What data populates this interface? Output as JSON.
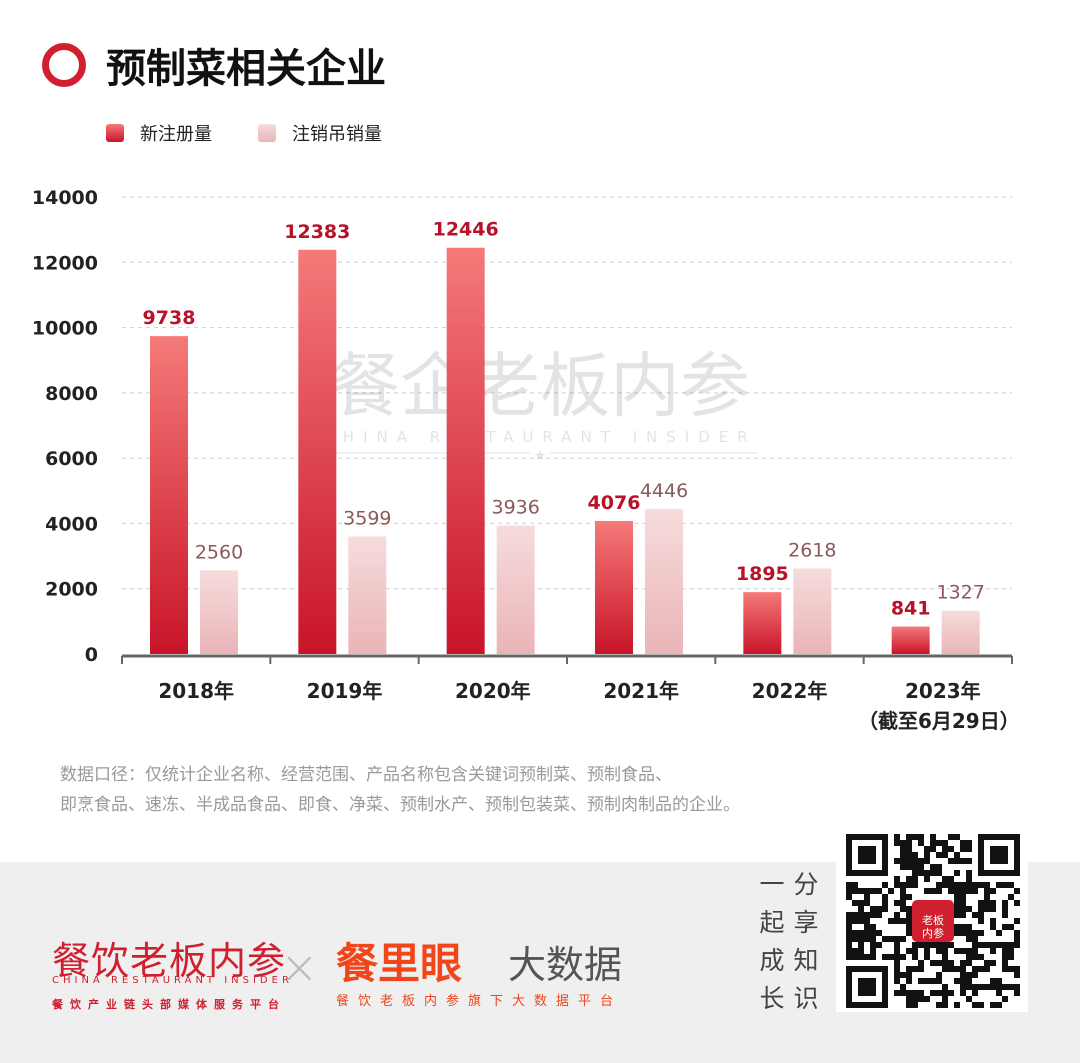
{
  "header": {
    "title": "预制菜相关企业"
  },
  "colors": {
    "accent": "#d01f2e",
    "new_top": "#f47a78",
    "new_bottom": "#c8142a",
    "cancel_top": "#f6dcdc",
    "cancel_bottom": "#eab4b7",
    "cancel_label": "#8a5a5a"
  },
  "chart_data": {
    "type": "bar",
    "title": "预制菜相关企业",
    "categories": [
      "2018年",
      "2019年",
      "2020年",
      "2021年",
      "2022年",
      "2023年"
    ],
    "category_notes": [
      "",
      "",
      "",
      "",
      "",
      "（截至6月29日）"
    ],
    "series": [
      {
        "name": "新注册量",
        "values": [
          9738,
          12383,
          12446,
          4076,
          1895,
          841
        ]
      },
      {
        "name": "注销吊销量",
        "values": [
          2560,
          3599,
          3936,
          4446,
          2618,
          1327
        ]
      }
    ],
    "yticks": [
      0,
      2000,
      4000,
      6000,
      8000,
      10000,
      12000,
      14000
    ],
    "ylim": [
      0,
      14000
    ],
    "xlabel": "",
    "ylabel": "",
    "grid": true,
    "legend": "top-left"
  },
  "watermark": {
    "cn": "餐企老板内参",
    "en": "CHINA RESTAURANT INSIDER"
  },
  "note": {
    "line1": "数据口径：仅统计企业名称、经营范围、产品名称包含关键词预制菜、预制食品、",
    "line2": "即烹食品、速冻、半成品食品、即食、净菜、预制水产、预制包装菜、预制肉制品的企业。"
  },
  "footer": {
    "brand1": "餐饮老板内参",
    "brand1_en": "CHINA RESTAURANT INSIDER",
    "brand1_sub": "餐饮产业链头部媒体服务平台",
    "cross": "×",
    "brand2": "餐里眼",
    "brand2_b": "大数据",
    "brand2_sub": "餐饮老板内参旗下大数据平台",
    "side_col1": "一起成长",
    "side_col2": "分享知识",
    "qr_logo": "老板内参"
  }
}
